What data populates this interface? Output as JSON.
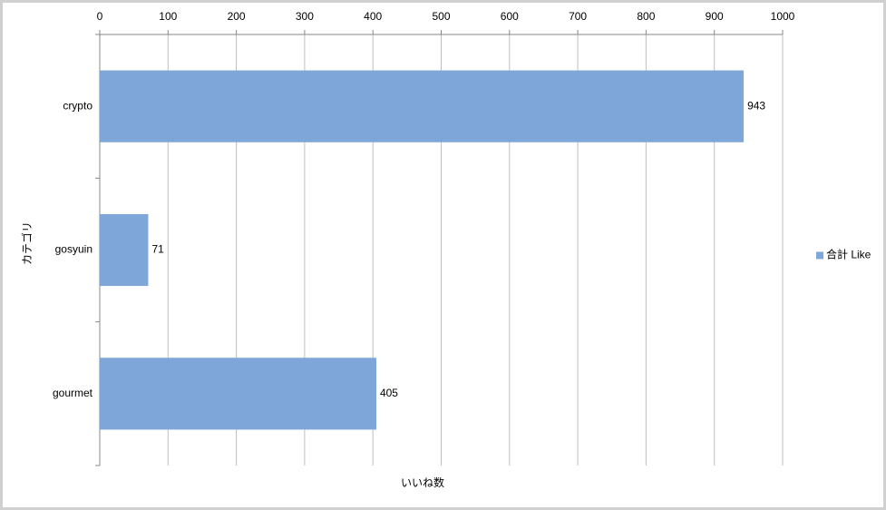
{
  "chart_data": {
    "type": "bar",
    "categories": [
      "crypto",
      "gosyuin",
      "gourmet"
    ],
    "series": [
      {
        "name": "合計 Like",
        "color": "#7ea6d8",
        "values": [
          943,
          71,
          405
        ]
      }
    ],
    "xlim": [
      0,
      1000
    ],
    "xticks": [
      0,
      100,
      200,
      300,
      400,
      500,
      600,
      700,
      800,
      900,
      1000
    ],
    "x_label": "いいね数",
    "y_label": "カテゴリ",
    "grid": true,
    "legend": "right"
  }
}
